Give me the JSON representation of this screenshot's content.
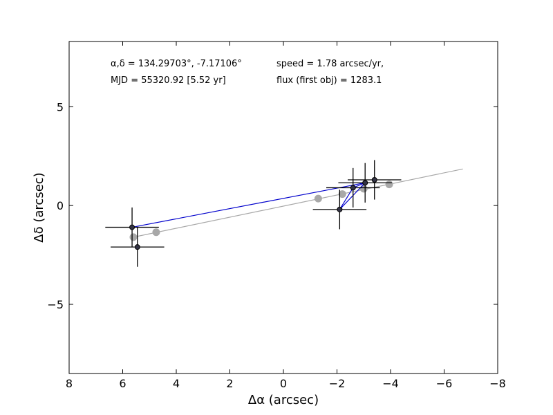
{
  "chart_data": {
    "type": "scatter",
    "title": "",
    "xlabel": "Δα (arcsec)",
    "ylabel": "Δδ (arcsec)",
    "xlim": [
      8,
      -8
    ],
    "ylim": [
      -8.5,
      8.3
    ],
    "x_inverted": true,
    "grid": false,
    "xticks": [
      8,
      6,
      4,
      2,
      0,
      -2,
      -4,
      -6,
      -8
    ],
    "xtick_labels": [
      "8",
      "6",
      "4",
      "2",
      "0",
      "−2",
      "−4",
      "−6",
      "−8"
    ],
    "yticks": [
      5,
      0,
      -5
    ],
    "ytick_labels": [
      "5",
      "0",
      "−5"
    ],
    "annotations": {
      "coords": "α,δ = 134.29703°, -7.17106°",
      "mjd": "MJD = 55320.92 [5.52 yr]",
      "speed": "speed = 1.78 arcsec/yr,",
      "flux": "flux (first obj) = 1283.1"
    },
    "model_line": {
      "color": "#a8a8a8",
      "points": [
        [
          5.6,
          -1.6
        ],
        [
          -6.7,
          1.85
        ]
      ]
    },
    "model_points": {
      "color": "#a8a8a8",
      "points": [
        [
          5.6,
          -1.6
        ],
        [
          4.75,
          -1.35
        ],
        [
          -1.3,
          0.35
        ],
        [
          -2.2,
          0.58
        ],
        [
          -3.0,
          0.85
        ],
        [
          -3.95,
          1.07
        ]
      ]
    },
    "observed_path": {
      "color": "#0000cc",
      "order": [
        [
          5.65,
          -1.1
        ],
        [
          -3.05,
          1.15
        ],
        [
          -2.6,
          0.9
        ],
        [
          -2.1,
          -0.2
        ],
        [
          -3.05,
          1.15
        ]
      ]
    },
    "observations": [
      {
        "x": 5.65,
        "y": -1.1,
        "xerr": 1.0,
        "yerr": 1.0
      },
      {
        "x": 5.45,
        "y": -2.1,
        "xerr": 1.0,
        "yerr": 1.0
      },
      {
        "x": -2.1,
        "y": -0.2,
        "xerr": 1.0,
        "yerr": 1.0
      },
      {
        "x": -2.6,
        "y": 0.9,
        "xerr": 1.0,
        "yerr": 1.0
      },
      {
        "x": -3.05,
        "y": 1.15,
        "xerr": 1.0,
        "yerr": 1.0
      },
      {
        "x": -3.4,
        "y": 1.3,
        "xerr": 1.0,
        "yerr": 1.0
      }
    ],
    "observation_color": "#333344"
  }
}
